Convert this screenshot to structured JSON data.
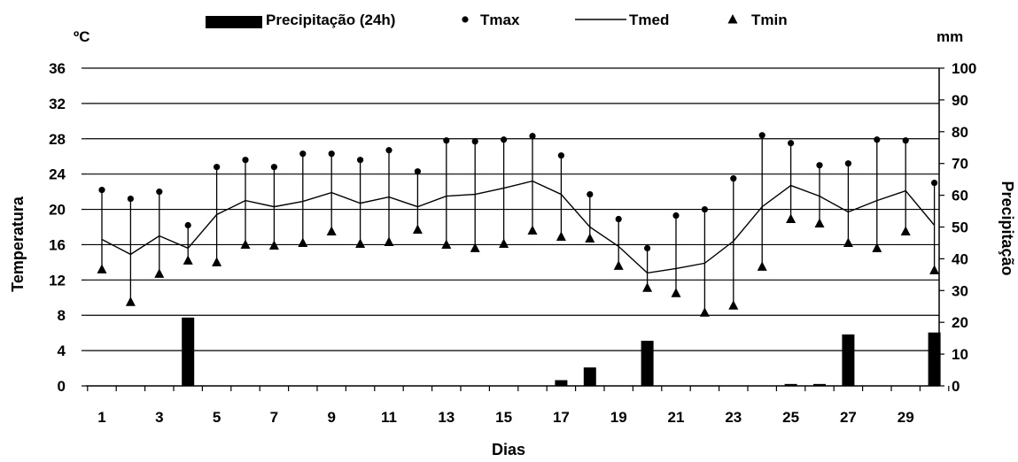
{
  "chart_data": {
    "type": "bar+line+scatter",
    "xlabel": "Dias",
    "ylabel_left": "Temperatura",
    "ylabel_right": "Precipitação",
    "unit_left": "ºC",
    "unit_right": "mm",
    "x_ticks": [
      "1",
      "3",
      "5",
      "7",
      "9",
      "11",
      "13",
      "15",
      "17",
      "19",
      "21",
      "23",
      "25",
      "27",
      "29"
    ],
    "y_left_ticks": [
      "0",
      "4",
      "8",
      "12",
      "16",
      "20",
      "24",
      "28",
      "32",
      "36"
    ],
    "y_right_ticks": [
      "0",
      "10",
      "20",
      "30",
      "40",
      "50",
      "60",
      "70",
      "80",
      "90",
      "100"
    ],
    "ylim_left": [
      0,
      36
    ],
    "ylim_right": [
      0,
      100
    ],
    "days": [
      1,
      2,
      3,
      4,
      5,
      6,
      7,
      8,
      9,
      10,
      11,
      12,
      13,
      14,
      15,
      16,
      17,
      18,
      19,
      20,
      21,
      22,
      23,
      24,
      25,
      26,
      27,
      28,
      29,
      30
    ],
    "legend": [
      {
        "key": "precip",
        "label": "Precipitação (24h)"
      },
      {
        "key": "tmax",
        "label": "Tmax"
      },
      {
        "key": "tmed",
        "label": "Tmed"
      },
      {
        "key": "tmin",
        "label": "Tmin"
      }
    ],
    "series": [
      {
        "key": "precip",
        "name": "Precipitação (24h)",
        "axis": "right",
        "type": "bar",
        "values": [
          0,
          0,
          0,
          21.5,
          0,
          0,
          0,
          0,
          0,
          0,
          0,
          0,
          0,
          0,
          0,
          0,
          1.8,
          5.8,
          0,
          14.2,
          0,
          0,
          0,
          0,
          0.6,
          0.6,
          16.2,
          0,
          0,
          16.8
        ]
      },
      {
        "key": "tmax",
        "name": "Tmax",
        "axis": "left",
        "type": "scatter",
        "values": [
          22.2,
          21.2,
          22.0,
          18.2,
          24.8,
          25.6,
          24.8,
          26.3,
          26.3,
          25.6,
          26.7,
          24.3,
          27.8,
          27.7,
          27.9,
          28.3,
          26.1,
          21.7,
          18.9,
          15.6,
          19.3,
          20.0,
          23.5,
          28.4,
          27.5,
          25.0,
          25.2,
          27.9,
          27.8,
          23.0
        ]
      },
      {
        "key": "tmed",
        "name": "Tmed",
        "axis": "left",
        "type": "line",
        "values": [
          16.6,
          14.9,
          17.0,
          15.6,
          19.4,
          21.0,
          20.3,
          20.9,
          21.9,
          20.7,
          21.4,
          20.3,
          21.5,
          21.7,
          22.4,
          23.2,
          21.7,
          18.0,
          15.8,
          12.8,
          13.3,
          13.9,
          16.4,
          20.3,
          22.7,
          21.5,
          19.7,
          21.0,
          22.1,
          18.2
        ]
      },
      {
        "key": "tmin",
        "name": "Tmin",
        "axis": "left",
        "type": "scatter",
        "values": [
          13.2,
          9.5,
          12.7,
          14.2,
          14.0,
          16.0,
          15.9,
          16.2,
          17.5,
          16.1,
          16.3,
          17.7,
          16.0,
          15.6,
          16.1,
          17.6,
          16.9,
          16.7,
          13.6,
          11.1,
          10.5,
          8.3,
          9.1,
          13.5,
          18.9,
          18.4,
          16.2,
          15.6,
          17.5,
          13.1
        ]
      }
    ]
  }
}
